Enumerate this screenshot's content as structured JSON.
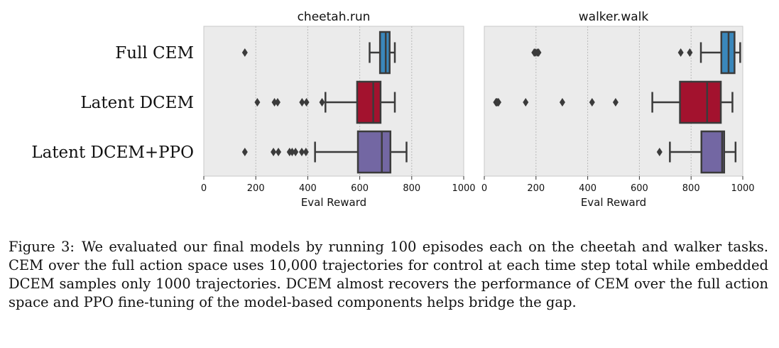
{
  "chart_data": [
    {
      "type": "box",
      "title": "cheetah.run",
      "xlabel": "Eval Reward",
      "xlim": [
        0,
        1000
      ],
      "xticks": [
        "0",
        "200",
        "400",
        "600",
        "800",
        "1000"
      ],
      "grid": true,
      "categories": [
        "Full CEM",
        "Latent DCEM",
        "Latent DCEM+PPO"
      ],
      "boxes": [
        {
          "name": "Full CEM",
          "color": "#3a87bb",
          "whisker_low": 638,
          "q1": 678,
          "median": 700,
          "q3": 715,
          "whisker_high": 735,
          "outliers": [
            158
          ]
        },
        {
          "name": "Latent DCEM",
          "color": "#a3122e",
          "whisker_low": 468,
          "q1": 590,
          "median": 652,
          "q3": 680,
          "whisker_high": 735,
          "outliers": [
            206,
            272,
            284,
            378,
            395,
            455
          ]
        },
        {
          "name": "Latent DCEM+PPO",
          "color": "#7367a3",
          "whisker_low": 428,
          "q1": 593,
          "median": 685,
          "q3": 718,
          "whisker_high": 780,
          "outliers": [
            158,
            268,
            287,
            330,
            340,
            353,
            377,
            393
          ]
        }
      ]
    },
    {
      "type": "box",
      "title": "walker.walk",
      "xlabel": "Eval Reward",
      "xlim": [
        0,
        1000
      ],
      "xticks": [
        "0",
        "200",
        "400",
        "600",
        "800",
        "1000"
      ],
      "grid": true,
      "categories": [
        "Full CEM",
        "Latent DCEM",
        "Latent DCEM+PPO"
      ],
      "boxes": [
        {
          "name": "Full CEM",
          "color": "#3a87bb",
          "whisker_low": 838,
          "q1": 917,
          "median": 945,
          "q3": 968,
          "whisker_high": 990,
          "outliers": [
            193,
            198,
            205,
            210,
            760,
            795
          ]
        },
        {
          "name": "Latent DCEM",
          "color": "#a3122e",
          "whisker_low": 650,
          "q1": 757,
          "median": 862,
          "q3": 915,
          "whisker_high": 960,
          "outliers": [
            45,
            48,
            52,
            55,
            160,
            302,
            417,
            508
          ]
        },
        {
          "name": "Latent DCEM+PPO",
          "color": "#7367a3",
          "whisker_low": 718,
          "q1": 840,
          "median": 920,
          "q3": 928,
          "whisker_high": 972,
          "outliers": [
            678
          ]
        }
      ]
    }
  ],
  "caption": {
    "label": "Figure 3:",
    "text": "We evaluated our final models by running 100 episodes each on the cheetah and walker tasks. CEM over the full action space uses 10,000 trajectories for control at each time step total while embedded DCEM samples only 1000 trajectories. DCEM almost recovers the performance of CEM over the full action space and PPO fine-tuning of the model-based components helps bridge the gap."
  }
}
